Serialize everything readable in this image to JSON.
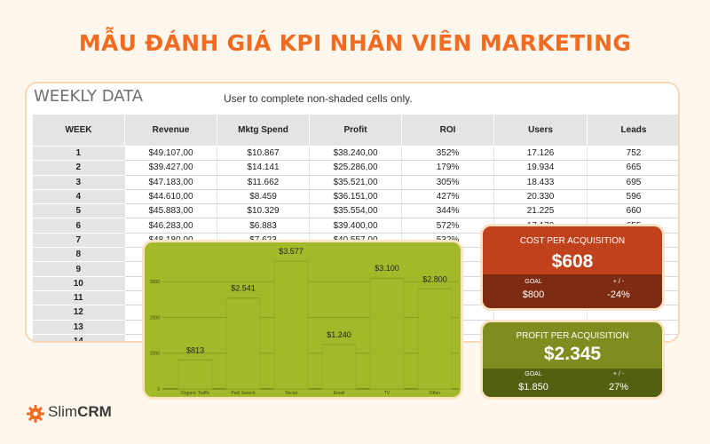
{
  "page_title": "MẪU ĐÁNH GIÁ KPI NHÂN VIÊN MARKETING",
  "sheet": {
    "title": "WEEKLY DATA",
    "note": "User to complete non-shaded cells only.",
    "columns": [
      "WEEK",
      "Revenue",
      "Mktg Spend",
      "Profit",
      "ROI",
      "Users",
      "Leads"
    ],
    "rows": [
      [
        "1",
        "$49.107,00",
        "$10.867",
        "$38.240,00",
        "352%",
        "17.126",
        "752"
      ],
      [
        "2",
        "$39.427,00",
        "$14.141",
        "$25.286,00",
        "179%",
        "19.934",
        "665"
      ],
      [
        "3",
        "$47.183,00",
        "$11.662",
        "$35.521,00",
        "305%",
        "18.433",
        "695"
      ],
      [
        "4",
        "$44.610,00",
        "$8.459",
        "$36.151,00",
        "427%",
        "20.330",
        "596"
      ],
      [
        "5",
        "$45.883,00",
        "$10.329",
        "$35.554,00",
        "344%",
        "21.225",
        "660"
      ],
      [
        "6",
        "$46.283,00",
        "$6.883",
        "$39.400,00",
        "572%",
        "17.170",
        "655"
      ],
      [
        "7",
        "$48.180,00",
        "$7.623",
        "$40.557,00",
        "532%",
        "",
        ""
      ],
      [
        "8",
        "",
        "",
        "",
        "",
        "",
        ""
      ],
      [
        "9",
        "",
        "",
        "",
        "",
        "",
        ""
      ],
      [
        "10",
        "",
        "",
        "",
        "",
        "",
        ""
      ],
      [
        "11",
        "",
        "",
        "",
        "",
        "",
        ""
      ],
      [
        "12",
        "",
        "",
        "",
        "",
        "",
        ""
      ],
      [
        "13",
        "",
        "",
        "",
        "",
        "",
        ""
      ],
      [
        "14",
        "",
        "",
        "",
        "",
        "",
        ""
      ]
    ]
  },
  "chart_data": {
    "type": "bar",
    "categories": [
      "Organic Traffic",
      "Paid Search",
      "Social",
      "Email",
      "TV",
      "Other"
    ],
    "values": [
      813,
      2541,
      3577,
      1240,
      3100,
      2800
    ],
    "data_labels": [
      "$813",
      "$2.541",
      "$3.577",
      "$1.240",
      "$3.100",
      "$2.800"
    ],
    "y_ticks": [
      "0",
      "1000",
      "2000",
      "3000"
    ],
    "ylim": [
      0,
      3900
    ],
    "grid": true
  },
  "kpis": {
    "cpa": {
      "label": "COST PER ACQUISITION",
      "value": "$608",
      "goal_label": "GOAL",
      "goal_value": "$800",
      "delta_label": "+ / -",
      "delta_value": "-24%"
    },
    "ppa": {
      "label": "PROFIT PER ACQUISITION",
      "value": "$2.345",
      "goal_label": "GOAL",
      "goal_value": "$1.850",
      "delta_label": "+ / -",
      "delta_value": "27%"
    }
  },
  "brand": {
    "name_regular": "Slim",
    "name_bold": "CRM",
    "logo_icon": "gear-icon",
    "accent": "#f26b21"
  }
}
